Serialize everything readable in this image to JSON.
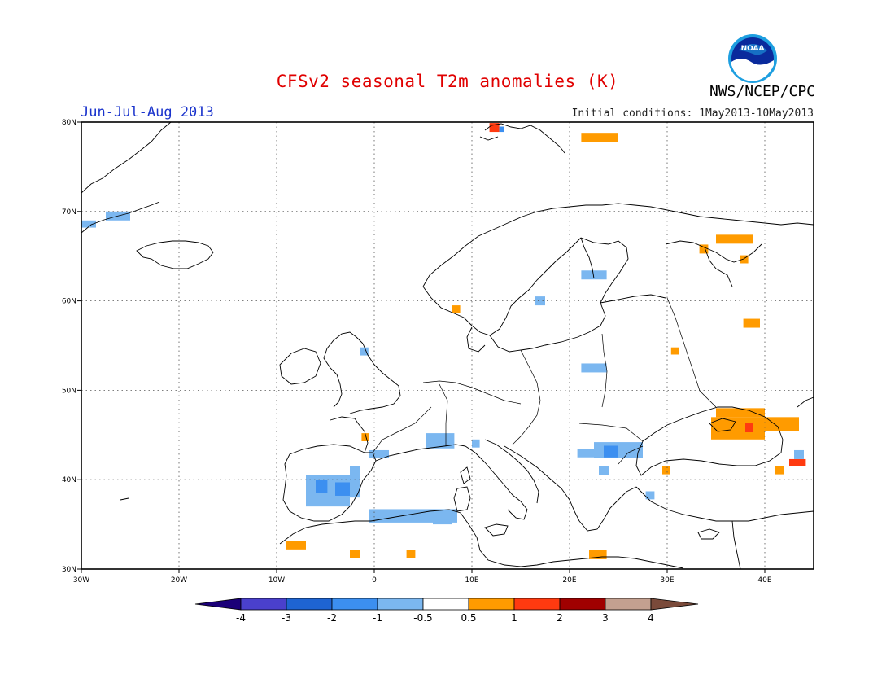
{
  "header": {
    "title": "CFSv2 seasonal T2m anomalies (K)",
    "agency": "NWS/NCEP/CPC",
    "logo_text": "NOAA",
    "period": "Jun-Jul-Aug 2013",
    "initial_conditions": "Initial conditions: 1May2013-10May2013"
  },
  "map": {
    "region": "Europe",
    "lon_range": [
      -30,
      45
    ],
    "lat_range": [
      30,
      80
    ],
    "grid": "dotted",
    "lat_ticks": [
      {
        "value": 80,
        "label": "80N"
      },
      {
        "value": 70,
        "label": "70N"
      },
      {
        "value": 60,
        "label": "60N"
      },
      {
        "value": 50,
        "label": "50N"
      },
      {
        "value": 40,
        "label": "40N"
      },
      {
        "value": 30,
        "label": "30N"
      }
    ],
    "lon_ticks": [
      {
        "value": -30,
        "label": "30W"
      },
      {
        "value": -20,
        "label": "20W"
      },
      {
        "value": -10,
        "label": "10W"
      },
      {
        "value": 0,
        "label": "0"
      },
      {
        "value": 10,
        "label": "10E"
      },
      {
        "value": 20,
        "label": "20E"
      },
      {
        "value": 30,
        "label": "30E"
      },
      {
        "value": 40,
        "label": "40E"
      }
    ],
    "anomaly_cells": [
      {
        "lon": [
          -30,
          -28.5
        ],
        "lat": [
          68.2,
          69
        ],
        "level": -1
      },
      {
        "lon": [
          -27.5,
          -25
        ],
        "lat": [
          69,
          70
        ],
        "level": -1
      },
      {
        "lon": [
          11.8,
          12.8
        ],
        "lat": [
          78.9,
          79.9
        ],
        "level": 2
      },
      {
        "lon": [
          12.8,
          13.3
        ],
        "lat": [
          78.9,
          79.5
        ],
        "level": 1
      },
      {
        "lon": [
          21.2,
          25
        ],
        "lat": [
          77.8,
          78.8
        ],
        "level": 0.5
      },
      {
        "lon": [
          35,
          38.8
        ],
        "lat": [
          66.4,
          67.4
        ],
        "level": 0.5
      },
      {
        "lon": [
          33.3,
          34.2
        ],
        "lat": [
          65.3,
          66.3
        ],
        "level": 0.5
      },
      {
        "lon": [
          37.5,
          38.3
        ],
        "lat": [
          64.2,
          65.1
        ],
        "level": 0.5
      },
      {
        "lon": [
          37.8,
          39.5
        ],
        "lat": [
          57,
          58
        ],
        "level": 0.5
      },
      {
        "lon": [
          30.4,
          31.2
        ],
        "lat": [
          54,
          54.8
        ],
        "level": 0.5
      },
      {
        "lon": [
          8,
          8.8
        ],
        "lat": [
          58.6,
          59.5
        ],
        "level": 0.5
      },
      {
        "lon": [
          21.2,
          23.8
        ],
        "lat": [
          62.4,
          63.4
        ],
        "level": -1
      },
      {
        "lon": [
          16.5,
          17.5
        ],
        "lat": [
          59.5,
          60.5
        ],
        "level": -1
      },
      {
        "lon": [
          -1.5,
          -0.6
        ],
        "lat": [
          53.9,
          54.8
        ],
        "level": -1
      },
      {
        "lon": [
          21.2,
          23.8
        ],
        "lat": [
          52,
          53
        ],
        "level": -1
      },
      {
        "lon": [
          35,
          40
        ],
        "lat": [
          47,
          48
        ],
        "level": 0.5
      },
      {
        "lon": [
          34.5,
          40
        ],
        "lat": [
          44.5,
          47
        ],
        "level": 0.5
      },
      {
        "lon": [
          40,
          43.5
        ],
        "lat": [
          45.4,
          47
        ],
        "level": 0.5
      },
      {
        "lon": [
          38,
          38.8
        ],
        "lat": [
          45.3,
          46.3
        ],
        "level": 2
      },
      {
        "lon": [
          42.5,
          44.2
        ],
        "lat": [
          41.5,
          42.3
        ],
        "level": 2
      },
      {
        "lon": [
          41,
          42
        ],
        "lat": [
          40.6,
          41.5
        ],
        "level": 0.5
      },
      {
        "lon": [
          29.5,
          30.3
        ],
        "lat": [
          40.6,
          41.5
        ],
        "level": 0.5
      },
      {
        "lon": [
          43,
          44
        ],
        "lat": [
          42.3,
          43.3
        ],
        "level": -1
      },
      {
        "lon": [
          22.5,
          27.5
        ],
        "lat": [
          42.4,
          44.2
        ],
        "level": -1
      },
      {
        "lon": [
          20.8,
          23.5
        ],
        "lat": [
          42.5,
          43.4
        ],
        "level": -1
      },
      {
        "lon": [
          23.5,
          25
        ],
        "lat": [
          42.5,
          43.8
        ],
        "level": -2
      },
      {
        "lon": [
          23,
          24
        ],
        "lat": [
          40.5,
          41.5
        ],
        "level": -1
      },
      {
        "lon": [
          27.8,
          28.7
        ],
        "lat": [
          37.8,
          38.7
        ],
        "level": -1
      },
      {
        "lon": [
          5.3,
          8.2
        ],
        "lat": [
          43.5,
          45.2
        ],
        "level": -1
      },
      {
        "lon": [
          10,
          10.8
        ],
        "lat": [
          43.6,
          44.5
        ],
        "level": -1
      },
      {
        "lon": [
          -0.5,
          1.5
        ],
        "lat": [
          42.4,
          43.3
        ],
        "level": -1
      },
      {
        "lon": [
          -1.3,
          -0.5
        ],
        "lat": [
          44.3,
          45.2
        ],
        "level": 0.5
      },
      {
        "lon": [
          -7,
          -2.5
        ],
        "lat": [
          37,
          40.5
        ],
        "level": -1
      },
      {
        "lon": [
          -2.5,
          -1.5
        ],
        "lat": [
          38,
          41.5
        ],
        "level": -1
      },
      {
        "lon": [
          -4,
          -2.5
        ],
        "lat": [
          38.2,
          39.7
        ],
        "level": -2
      },
      {
        "lon": [
          -6,
          -4.8
        ],
        "lat": [
          38.5,
          40
        ],
        "level": -1.5
      },
      {
        "lon": [
          -0.5,
          8.5
        ],
        "lat": [
          35.2,
          36.7
        ],
        "level": -1
      },
      {
        "lon": [
          6,
          8
        ],
        "lat": [
          35,
          35.5
        ],
        "level": -1
      },
      {
        "lon": [
          -9,
          -7
        ],
        "lat": [
          32.2,
          33.1
        ],
        "level": 0.5
      },
      {
        "lon": [
          -2.5,
          -1.5
        ],
        "lat": [
          31.2,
          32.1
        ],
        "level": 0.5
      },
      {
        "lon": [
          3.3,
          4.2
        ],
        "lat": [
          31.2,
          32.1
        ],
        "level": 0.5
      },
      {
        "lon": [
          22,
          23.8
        ],
        "lat": [
          31.1,
          32.1
        ],
        "level": 0.5
      }
    ]
  },
  "colorbar": {
    "levels": [
      "-4",
      "-3",
      "-2",
      "-1",
      "-0.5",
      "0.5",
      "1",
      "2",
      "3",
      "4"
    ],
    "colors": [
      "#1b0078",
      "#4a40cc",
      "#1e64d2",
      "#3c8ff0",
      "#7bb7f0",
      "#ffffff",
      "#ff9b00",
      "#ff3a10",
      "#a00000",
      "#c3a090",
      "#7a4a3a"
    ]
  },
  "colors": {
    "warm_0_5_1": "#ff9b00",
    "warm_1_2": "#ff3a10",
    "cool_-1_-0_5": "#7bb7f0",
    "cool_-2_-1": "#3c8ff0",
    "coastline": "#000000",
    "title": "#e00000",
    "period": "#1a33cc"
  }
}
